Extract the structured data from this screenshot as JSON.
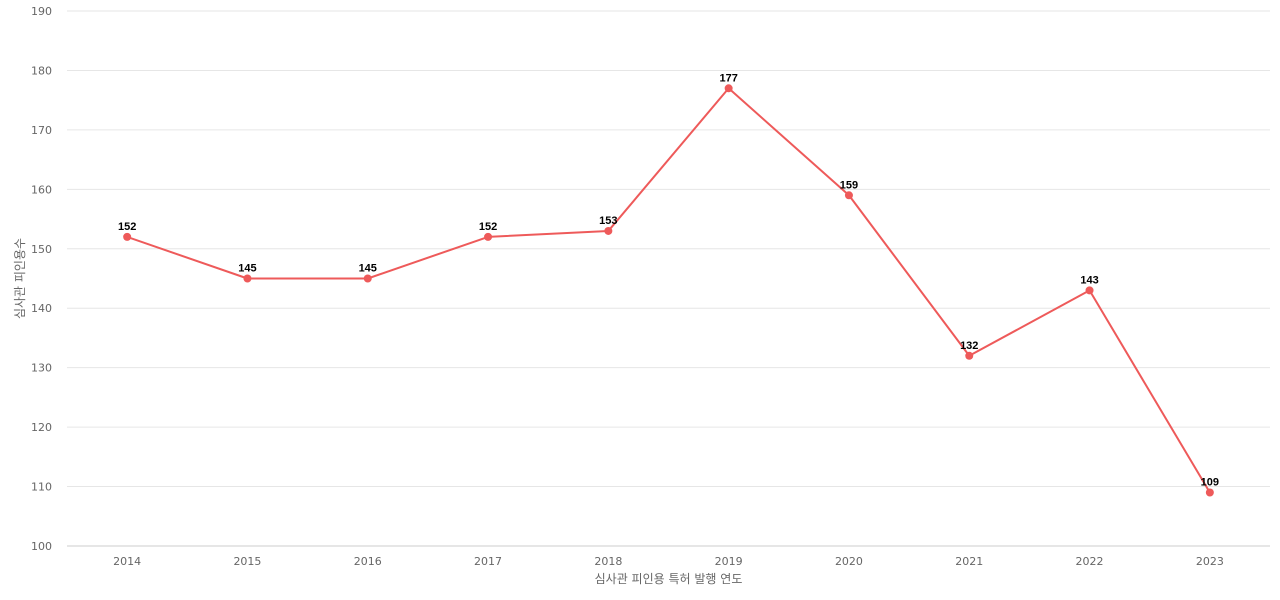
{
  "chart_data": {
    "type": "line",
    "categories": [
      "2014",
      "2015",
      "2016",
      "2017",
      "2018",
      "2019",
      "2020",
      "2021",
      "2022",
      "2023"
    ],
    "series": [
      {
        "values": [
          152,
          145,
          145,
          152,
          153,
          177,
          159,
          132,
          143,
          109
        ],
        "color": "#ee5a5a"
      }
    ],
    "xlabel": "심사관 피인용 특허 발행 연도",
    "ylabel": "심사관 피인용수",
    "ylim": [
      100,
      190
    ],
    "yticks": [
      100,
      110,
      120,
      130,
      140,
      150,
      160,
      170,
      180,
      190
    ],
    "grid": true,
    "data_labels": true
  }
}
